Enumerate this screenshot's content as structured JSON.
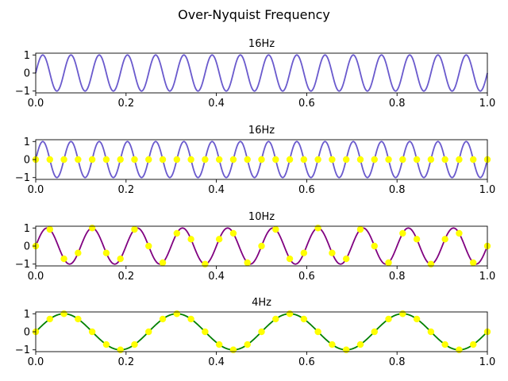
{
  "figure": {
    "title": "Over-Nyquist Frequency"
  },
  "chart_data": [
    {
      "type": "line",
      "title": "16Hz",
      "frequency_hz": 16,
      "function": "sin",
      "x_range": [
        0,
        1
      ],
      "xlim": [
        0.0,
        1.0
      ],
      "ylim": [
        -1.1,
        1.1
      ],
      "xticks": [
        "0.0",
        "0.2",
        "0.4",
        "0.6",
        "0.8",
        "1.0"
      ],
      "yticks": [
        "-1",
        "0",
        "1"
      ],
      "color": "#6a5acd",
      "samples": null
    },
    {
      "type": "line",
      "title": "16Hz",
      "frequency_hz": 16,
      "function": "sin",
      "x_range": [
        0,
        1
      ],
      "xlim": [
        0.0,
        1.0
      ],
      "ylim": [
        -1.1,
        1.1
      ],
      "xticks": [
        "0.0",
        "0.2",
        "0.4",
        "0.6",
        "0.8",
        "1.0"
      ],
      "yticks": [
        "-1",
        "0",
        "1"
      ],
      "color": "#6a5acd",
      "samples": {
        "count": 33,
        "x_start": 0.0,
        "x_step": 0.03125,
        "marker_color": "#ffff00"
      }
    },
    {
      "type": "line",
      "title": "10Hz",
      "frequency_hz": 10,
      "function": "sin",
      "x_range": [
        0,
        1
      ],
      "xlim": [
        0.0,
        1.0
      ],
      "ylim": [
        -1.1,
        1.1
      ],
      "xticks": [
        "0.0",
        "0.2",
        "0.4",
        "0.6",
        "0.8",
        "1.0"
      ],
      "yticks": [
        "-1",
        "0",
        "1"
      ],
      "color": "#800080",
      "samples": {
        "count": 33,
        "x_start": 0.0,
        "x_step": 0.03125,
        "marker_color": "#ffff00"
      }
    },
    {
      "type": "line",
      "title": "4Hz",
      "frequency_hz": 4,
      "function": "sin",
      "x_range": [
        0,
        1
      ],
      "xlim": [
        0.0,
        1.0
      ],
      "ylim": [
        -1.1,
        1.1
      ],
      "xticks": [
        "0.0",
        "0.2",
        "0.4",
        "0.6",
        "0.8",
        "1.0"
      ],
      "yticks": [
        "-1",
        "0",
        "1"
      ],
      "color": "#008000",
      "samples": {
        "count": 33,
        "x_start": 0.0,
        "x_step": 0.03125,
        "marker_color": "#ffff00"
      }
    }
  ]
}
